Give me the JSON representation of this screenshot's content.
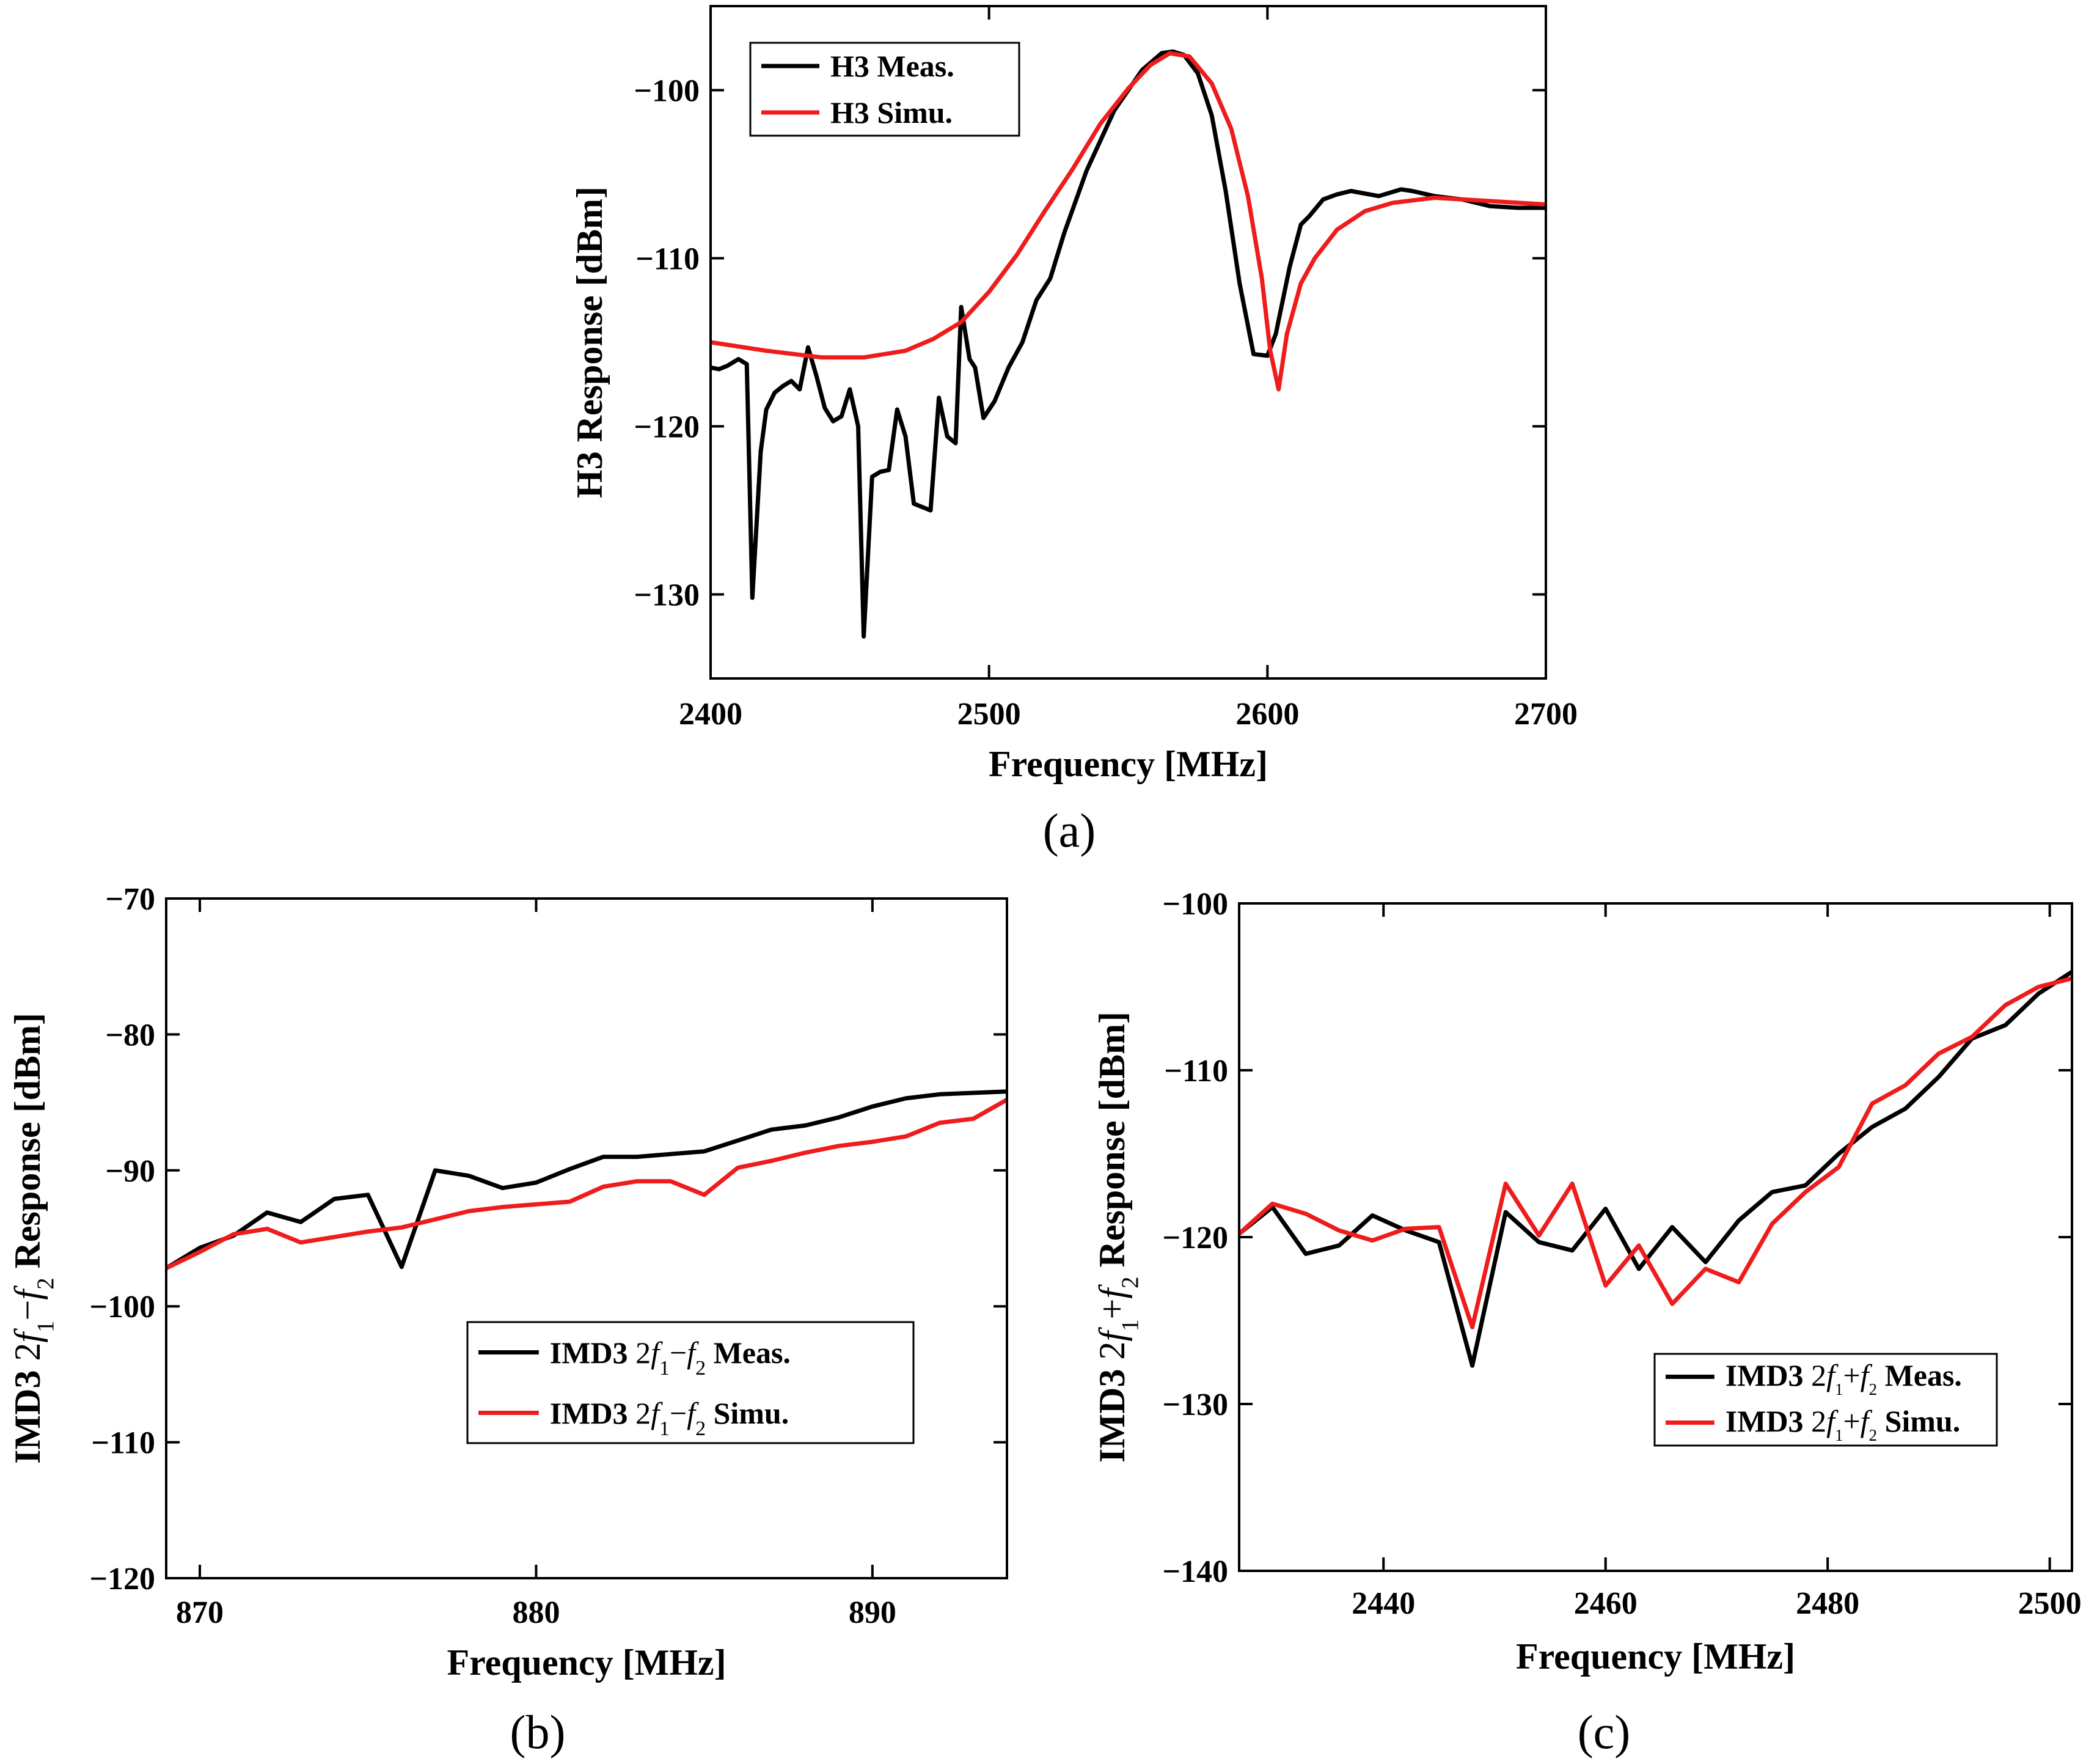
{
  "chart_data": [
    {
      "id": "a",
      "type": "line",
      "caption": "(a)",
      "xlabel": "Frequency [MHz]",
      "ylabel": "H3 Response [dBm]",
      "xlim": [
        2400,
        2700
      ],
      "ylim": [
        -135,
        -95
      ],
      "xticks": [
        2400,
        2500,
        2600,
        2700
      ],
      "yticks": [
        -130,
        -120,
        -110,
        -100
      ],
      "xtick_labels": [
        "2400",
        "2500",
        "2600",
        "2700"
      ],
      "ytick_labels": [
        "−130",
        "−120",
        "−110",
        "−100"
      ],
      "grid": false,
      "legend_position": "top-left",
      "series": [
        {
          "name": "H3 Meas.",
          "label_parts": [
            {
              "t": "H3 Meas."
            }
          ],
          "color": "#000000",
          "x": [
            2400,
            2403,
            2406,
            2410,
            2413,
            2415,
            2418,
            2420,
            2423,
            2426,
            2429,
            2432,
            2435,
            2438,
            2441,
            2444,
            2447,
            2450,
            2453,
            2455,
            2458,
            2461,
            2464,
            2467,
            2470,
            2473,
            2476,
            2479,
            2482,
            2485,
            2488,
            2490,
            2493,
            2495,
            2498,
            2502,
            2507,
            2512,
            2517,
            2522,
            2527,
            2535,
            2545,
            2555,
            2562,
            2566,
            2570,
            2575,
            2580,
            2585,
            2590,
            2595,
            2600,
            2603,
            2608,
            2612,
            2615,
            2620,
            2625,
            2630,
            2640,
            2648,
            2652,
            2660,
            2670,
            2680,
            2690,
            2700
          ],
          "y": [
            -116.5,
            -116.6,
            -116.4,
            -116,
            -116.3,
            -130.2,
            -121.5,
            -119,
            -118,
            -117.6,
            -117.3,
            -117.8,
            -115.3,
            -117,
            -118.9,
            -119.7,
            -119.4,
            -117.8,
            -120,
            -132.5,
            -123,
            -122.7,
            -122.6,
            -119,
            -120.6,
            -124.6,
            -124.8,
            -125,
            -118.3,
            -120.6,
            -121,
            -112.9,
            -116,
            -116.5,
            -119.5,
            -118.5,
            -116.5,
            -115,
            -112.5,
            -111.2,
            -108.5,
            -104.8,
            -101.2,
            -98.8,
            -97.8,
            -97.7,
            -97.9,
            -99,
            -101.5,
            -106,
            -111.5,
            -115.7,
            -115.8,
            -114.5,
            -110.5,
            -108,
            -107.5,
            -106.5,
            -106.2,
            -106,
            -106.3,
            -105.9,
            -106,
            -106.3,
            -106.5,
            -106.9,
            -107,
            -107
          ]
        },
        {
          "name": "H3 Simu.",
          "label_parts": [
            {
              "t": "H3 Simu."
            }
          ],
          "color": "#ee1c1c",
          "x": [
            2400,
            2420,
            2440,
            2455,
            2470,
            2480,
            2490,
            2500,
            2510,
            2520,
            2530,
            2540,
            2550,
            2558,
            2565,
            2572,
            2580,
            2587,
            2593,
            2598,
            2601,
            2604,
            2607,
            2612,
            2617,
            2625,
            2635,
            2645,
            2660,
            2680,
            2700
          ],
          "y": [
            -115,
            -115.5,
            -115.9,
            -115.9,
            -115.5,
            -114.8,
            -113.8,
            -112,
            -109.8,
            -107.2,
            -104.7,
            -102,
            -99.9,
            -98.5,
            -97.8,
            -98,
            -99.6,
            -102.3,
            -106.3,
            -111.2,
            -115.5,
            -117.8,
            -114.5,
            -111.5,
            -110,
            -108.3,
            -107.2,
            -106.7,
            -106.4,
            -106.6,
            -106.8
          ]
        }
      ]
    },
    {
      "id": "b",
      "type": "line",
      "caption": "(b)",
      "xlabel": "Frequency [MHz]",
      "ylabel_parts": [
        {
          "t": "IMD3 "
        },
        {
          "t": "2",
          "n": 1
        },
        {
          "t": "f",
          "i": 1,
          "n": 1
        },
        {
          "t": "1",
          "s": 1,
          "n": 1
        },
        {
          "t": "−",
          "n": 1
        },
        {
          "t": "f",
          "i": 1,
          "n": 1
        },
        {
          "t": "2",
          "s": 1,
          "n": 1
        },
        {
          "t": " Response [dBm]"
        }
      ],
      "xlim": [
        869,
        894
      ],
      "ylim": [
        -120,
        -70
      ],
      "xticks": [
        870,
        880,
        890
      ],
      "yticks": [
        -120,
        -110,
        -100,
        -90,
        -80,
        -70
      ],
      "xtick_labels": [
        "870",
        "880",
        "890"
      ],
      "ytick_labels": [
        "−120",
        "−110",
        "−100",
        "−90",
        "−80",
        "−70"
      ],
      "grid": false,
      "legend_position": "lower-right",
      "series": [
        {
          "name": "IMD3 2f1−f2 Meas.",
          "label_parts": [
            {
              "t": "IMD3 "
            },
            {
              "t": "2",
              "n": 1
            },
            {
              "t": "f",
              "i": 1,
              "n": 1
            },
            {
              "t": "1",
              "s": 1,
              "n": 1
            },
            {
              "t": "−",
              "n": 1
            },
            {
              "t": "f",
              "i": 1,
              "n": 1
            },
            {
              "t": "2",
              "s": 1,
              "n": 1
            },
            {
              "t": " Meas."
            }
          ],
          "color": "#000000",
          "x": [
            869,
            870,
            871,
            872,
            873,
            874,
            875,
            876,
            877,
            878,
            879,
            880,
            881,
            882,
            883,
            884,
            885,
            886,
            887,
            888,
            889,
            890,
            891,
            892,
            893,
            894
          ],
          "y": [
            -97.2,
            -95.7,
            -94.8,
            -93.1,
            -93.8,
            -92.1,
            -91.8,
            -97.1,
            -90,
            -90.4,
            -91.3,
            -90.9,
            -89.9,
            -89,
            -89,
            -88.8,
            -88.6,
            -87.8,
            -87,
            -86.7,
            -86.1,
            -85.3,
            -84.7,
            -84.4,
            -84.3,
            -84.2
          ]
        },
        {
          "name": "IMD3 2f1−f2 Simu.",
          "label_parts": [
            {
              "t": "IMD3 "
            },
            {
              "t": "2",
              "n": 1
            },
            {
              "t": "f",
              "i": 1,
              "n": 1
            },
            {
              "t": "1",
              "s": 1,
              "n": 1
            },
            {
              "t": "−",
              "n": 1
            },
            {
              "t": "f",
              "i": 1,
              "n": 1
            },
            {
              "t": "2",
              "s": 1,
              "n": 1
            },
            {
              "t": " Simu."
            }
          ],
          "color": "#ee1c1c",
          "x": [
            869,
            870,
            871,
            872,
            873,
            874,
            875,
            876,
            877,
            878,
            879,
            880,
            881,
            882,
            883,
            884,
            885,
            886,
            887,
            888,
            889,
            890,
            891,
            892,
            893,
            894
          ],
          "y": [
            -97.2,
            -96,
            -94.7,
            -94.3,
            -95.3,
            -94.9,
            -94.5,
            -94.2,
            -93.6,
            -93,
            -92.7,
            -92.5,
            -92.3,
            -91.2,
            -90.8,
            -90.8,
            -91.8,
            -89.8,
            -89.3,
            -88.7,
            -88.2,
            -87.9,
            -87.5,
            -86.5,
            -86.2,
            -84.8
          ]
        }
      ]
    },
    {
      "id": "c",
      "type": "line",
      "caption": "(c)",
      "xlabel": "Frequency [MHz]",
      "ylabel_parts": [
        {
          "t": "IMD3 "
        },
        {
          "t": "2",
          "n": 1
        },
        {
          "t": "f",
          "i": 1,
          "n": 1
        },
        {
          "t": "1",
          "s": 1,
          "n": 1
        },
        {
          "t": "+",
          "n": 1
        },
        {
          "t": "f",
          "i": 1,
          "n": 1
        },
        {
          "t": "2",
          "s": 1,
          "n": 1
        },
        {
          "t": " Response [dBm]"
        }
      ],
      "xlim": [
        2427,
        2502
      ],
      "ylim": [
        -140,
        -100
      ],
      "xticks": [
        2440,
        2460,
        2480,
        2500
      ],
      "yticks": [
        -140,
        -130,
        -120,
        -110,
        -100
      ],
      "xtick_labels": [
        "2440",
        "2460",
        "2480",
        "2500"
      ],
      "ytick_labels": [
        "−140",
        "−130",
        "−120",
        "−110",
        "−100"
      ],
      "grid": false,
      "legend_position": "lower-right",
      "series": [
        {
          "name": "IMD3 2f1+f2 Meas.",
          "label_parts": [
            {
              "t": "IMD3 "
            },
            {
              "t": "2",
              "n": 1
            },
            {
              "t": "f",
              "i": 1,
              "n": 1
            },
            {
              "t": "1",
              "s": 1,
              "n": 1
            },
            {
              "t": "+",
              "n": 1
            },
            {
              "t": "f",
              "i": 1,
              "n": 1
            },
            {
              "t": "2",
              "s": 1,
              "n": 1
            },
            {
              "t": " Meas."
            }
          ],
          "color": "#000000",
          "x": [
            2427,
            2430,
            2433,
            2436,
            2439,
            2442,
            2445,
            2448,
            2451,
            2454,
            2457,
            2460,
            2463,
            2466,
            2469,
            2472,
            2475,
            2478,
            2481,
            2484,
            2487,
            2490,
            2493,
            2496,
            2499,
            2502
          ],
          "y": [
            -119.8,
            -118.2,
            -121,
            -120.5,
            -118.7,
            -119.6,
            -120.3,
            -127.7,
            -118.5,
            -120.3,
            -120.8,
            -118.3,
            -121.9,
            -119.4,
            -121.5,
            -119,
            -117.3,
            -116.9,
            -115,
            -113.4,
            -112.3,
            -110.4,
            -108.1,
            -107.3,
            -105.4,
            -104.1
          ]
        },
        {
          "name": "IMD3 2f1+f2 Simu.",
          "label_parts": [
            {
              "t": "IMD3 "
            },
            {
              "t": "2",
              "n": 1
            },
            {
              "t": "f",
              "i": 1,
              "n": 1
            },
            {
              "t": "1",
              "s": 1,
              "n": 1
            },
            {
              "t": "+",
              "n": 1
            },
            {
              "t": "f",
              "i": 1,
              "n": 1
            },
            {
              "t": "2",
              "s": 1,
              "n": 1
            },
            {
              "t": " Simu."
            }
          ],
          "color": "#ee1c1c",
          "x": [
            2427,
            2430,
            2433,
            2436,
            2439,
            2442,
            2445,
            2448,
            2451,
            2454,
            2457,
            2460,
            2463,
            2466,
            2469,
            2472,
            2475,
            2478,
            2481,
            2484,
            2487,
            2490,
            2493,
            2496,
            2499,
            2502
          ],
          "y": [
            -119.8,
            -118,
            -118.6,
            -119.6,
            -120.2,
            -119.5,
            -119.4,
            -125.4,
            -116.8,
            -119.9,
            -116.8,
            -122.9,
            -120.5,
            -124,
            -121.9,
            -122.7,
            -119.2,
            -117.3,
            -115.8,
            -112,
            -110.9,
            -109,
            -108,
            -106.1,
            -105,
            -104.5
          ]
        }
      ]
    }
  ]
}
